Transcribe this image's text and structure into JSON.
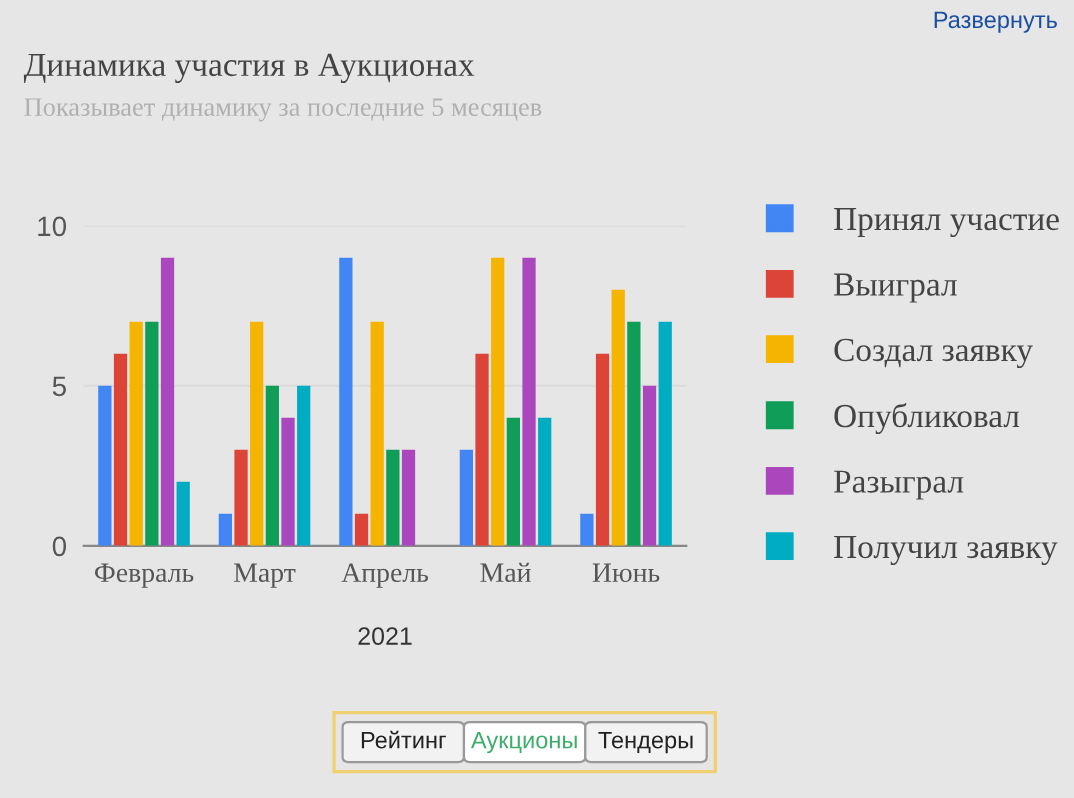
{
  "chart_data": {
    "type": "bar",
    "title": "Динамика участия в Аукционах",
    "subtitle": "Показывает динамику за последние 5 месяцев",
    "xlabel": "2021",
    "categories": [
      "Февраль",
      "Март",
      "Апрель",
      "Май",
      "Июнь"
    ],
    "series": [
      {
        "name": "Принял участие",
        "color": "#4285f4",
        "values": [
          5,
          1,
          9,
          3,
          1
        ]
      },
      {
        "name": "Выиграл",
        "color": "#db4437",
        "values": [
          6,
          3,
          1,
          6,
          6
        ]
      },
      {
        "name": "Создал заявку",
        "color": "#f4b400",
        "values": [
          7,
          7,
          7,
          9,
          8
        ]
      },
      {
        "name": "Опубликовал",
        "color": "#0f9d58",
        "values": [
          7,
          5,
          3,
          4,
          7
        ]
      },
      {
        "name": "Разыграл",
        "color": "#ab47bc",
        "values": [
          9,
          4,
          3,
          9,
          5
        ]
      },
      {
        "name": "Получил заявку",
        "color": "#00acc1",
        "values": [
          2,
          5,
          0,
          4,
          7
        ]
      }
    ],
    "ylim": [
      0,
      10
    ],
    "yticks": [
      0,
      5,
      10
    ],
    "grid": "y",
    "legend": "right",
    "annotations": [
      "Развернуть",
      "Рейтинг",
      "Аукционы",
      "Тендеры"
    ]
  }
}
